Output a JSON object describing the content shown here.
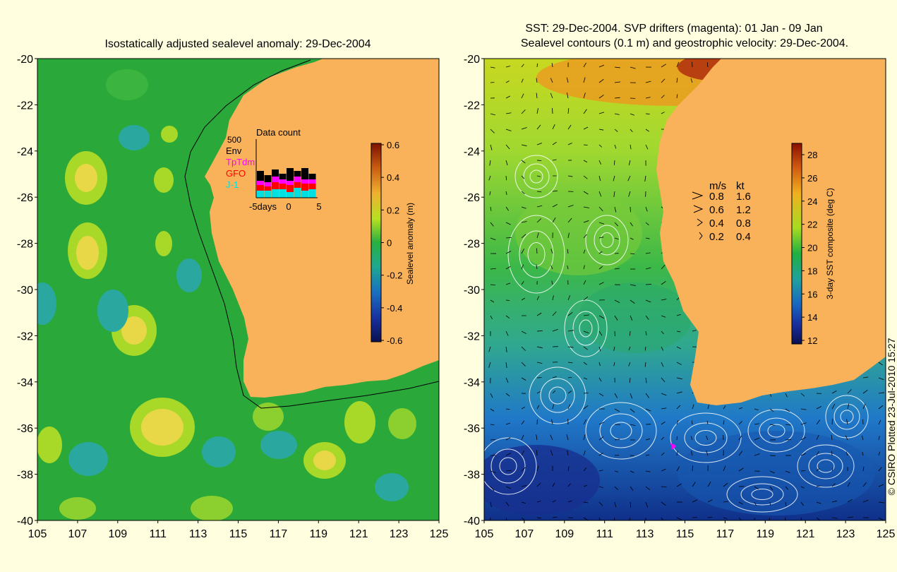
{
  "left_panel": {
    "title": "Isostatically adjusted sealevel anomaly: 29-Dec-2004",
    "y_ticks": [
      "-20",
      "-22",
      "-24",
      "-26",
      "-28",
      "-30",
      "-32",
      "-34",
      "-36",
      "-38",
      "-40"
    ],
    "x_ticks": [
      "105",
      "107",
      "109",
      "111",
      "113",
      "115",
      "117",
      "119",
      "121",
      "123",
      "125"
    ],
    "colorbar": {
      "label": "Sealevel anomaly (m)",
      "ticks": [
        "0.6",
        "0.4",
        "0.2",
        "0",
        "-0.2",
        "-0.4",
        "-0.6"
      ],
      "range": [
        -0.6,
        0.6
      ]
    },
    "data_count": {
      "title": "Data count",
      "max_label": "500",
      "legend": [
        {
          "name": "Env",
          "color": "#000000"
        },
        {
          "name": "TpTdm",
          "color": "#ff00ff"
        },
        {
          "name": "GFO",
          "color": "#ff0000"
        },
        {
          "name": "J-1",
          "color": "#00e0e0"
        }
      ],
      "x_labels": [
        "-5days",
        "0",
        "5"
      ]
    }
  },
  "right_panel": {
    "title_line1": "SST: 29-Dec-2004. SVP drifters (magenta): 01 Jan - 09 Jan",
    "title_line2": "Sealevel contours (0.1 m) and geostrophic velocity: 29-Dec-2004.",
    "y_ticks": [
      "-20",
      "-22",
      "-24",
      "-26",
      "-28",
      "-30",
      "-32",
      "-34",
      "-36",
      "-38",
      "-40"
    ],
    "x_ticks": [
      "105",
      "107",
      "109",
      "111",
      "113",
      "115",
      "117",
      "119",
      "121",
      "123",
      "125"
    ],
    "colorbar": {
      "label": "3-day SST composite (deg C)",
      "ticks": [
        "28",
        "26",
        "24",
        "22",
        "20",
        "18",
        "16",
        "14",
        "12"
      ],
      "range": [
        12,
        29
      ]
    },
    "velocity_key": {
      "header_ms": "m/s",
      "header_kt": "kt",
      "rows": [
        {
          "ms": "0.8",
          "kt": "1.6"
        },
        {
          "ms": "0.6",
          "kt": "1.2"
        },
        {
          "ms": "0.4",
          "kt": "0.8"
        },
        {
          "ms": "0.2",
          "kt": "0.4"
        }
      ]
    }
  },
  "footer": {
    "credit": "© CSIRO Plotted 23-Jul-2010 15:27"
  },
  "colors": {
    "background": "#ffffe0",
    "land": "#f9b25a",
    "ocean_green": "#2aa83a"
  }
}
